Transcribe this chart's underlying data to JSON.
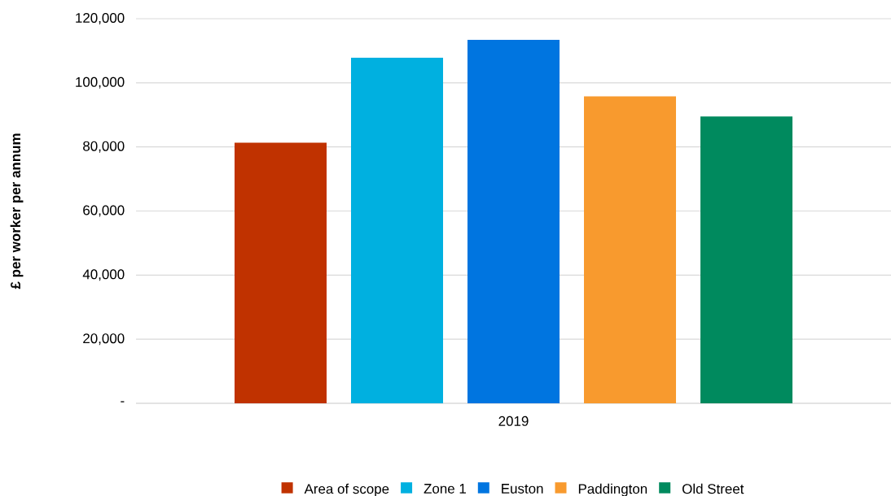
{
  "chart_data": {
    "type": "bar",
    "ylabel": "£ per worker per annum",
    "categories": [
      "2019"
    ],
    "series": [
      {
        "name": "Area of scope",
        "color": "#c03200",
        "values": [
          81300
        ]
      },
      {
        "name": "Zone 1",
        "color": "#00b0e0",
        "values": [
          107800
        ]
      },
      {
        "name": "Euston",
        "color": "#0075e0",
        "values": [
          113400
        ]
      },
      {
        "name": "Paddington",
        "color": "#f89a2e",
        "values": [
          95800
        ]
      },
      {
        "name": "Old Street",
        "color": "#008a5e",
        "values": [
          89500
        ]
      }
    ],
    "ylim": [
      0,
      120000
    ],
    "yticks": [
      {
        "value": 0,
        "label": "-"
      },
      {
        "value": 20000,
        "label": "20,000"
      },
      {
        "value": 40000,
        "label": "40,000"
      },
      {
        "value": 60000,
        "label": "60,000"
      },
      {
        "value": 80000,
        "label": "80,000"
      },
      {
        "value": 100000,
        "label": "100,000"
      },
      {
        "value": 120000,
        "label": "120,000"
      }
    ],
    "grid": "y",
    "legend": "bottom"
  }
}
